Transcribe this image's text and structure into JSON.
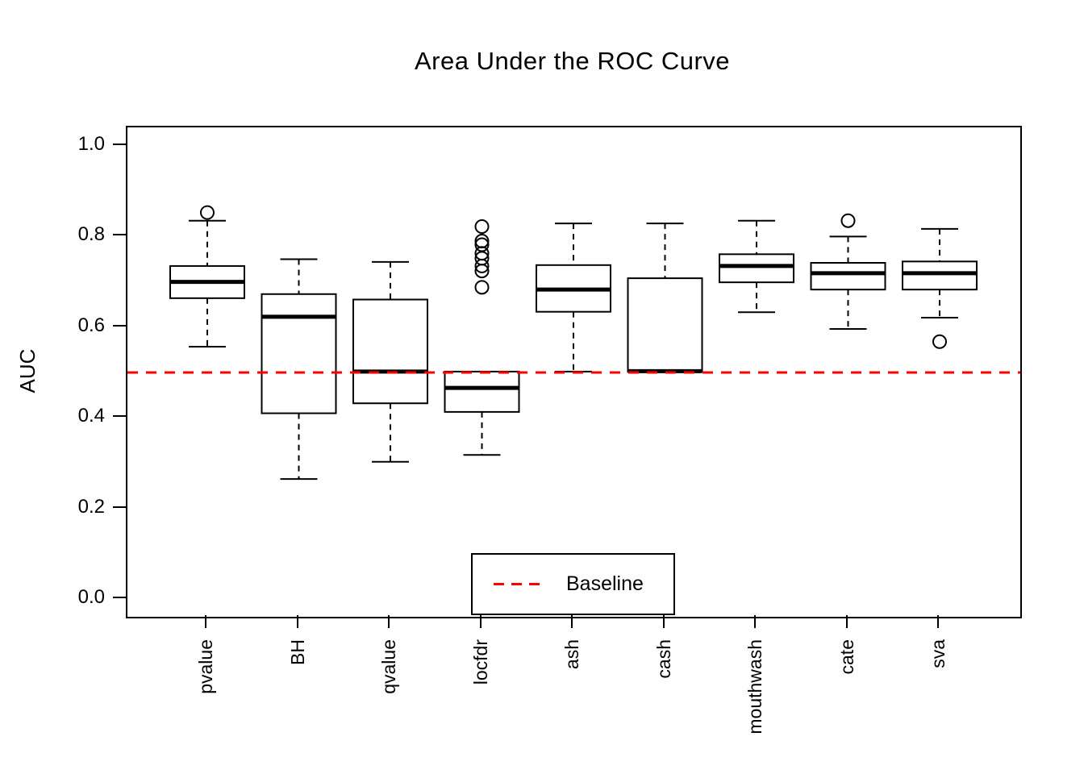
{
  "chart_data": {
    "type": "boxplot",
    "title": "Area Under the ROC Curve",
    "ylabel": "AUC",
    "xlabel": "",
    "ylim": [
      0.0,
      1.0
    ],
    "yticks": [
      0.0,
      0.2,
      0.4,
      0.6,
      0.8,
      1.0
    ],
    "grid": false,
    "categories": [
      "pvalue",
      "BH",
      "qvalue",
      "locfdr",
      "ash",
      "cash",
      "mouthwash",
      "cate",
      "sva"
    ],
    "boxes": [
      {
        "name": "pvalue",
        "whisker_low": 0.557,
        "q1": 0.664,
        "median": 0.7,
        "q3": 0.735,
        "whisker_high": 0.835,
        "outliers": [
          0.853
        ]
      },
      {
        "name": "BH",
        "whisker_low": 0.265,
        "q1": 0.41,
        "median": 0.623,
        "q3": 0.673,
        "whisker_high": 0.75,
        "outliers": []
      },
      {
        "name": "qvalue",
        "whisker_low": 0.303,
        "q1": 0.432,
        "median": 0.502,
        "q3": 0.661,
        "whisker_high": 0.744,
        "outliers": []
      },
      {
        "name": "locfdr",
        "whisker_low": 0.318,
        "q1": 0.413,
        "median": 0.466,
        "q3": 0.502,
        "whisker_high": 0.502,
        "outliers": [
          0.822,
          0.79,
          0.782,
          0.763,
          0.752,
          0.735,
          0.724,
          0.688
        ]
      },
      {
        "name": "ash",
        "whisker_low": 0.502,
        "q1": 0.634,
        "median": 0.683,
        "q3": 0.737,
        "whisker_high": 0.829,
        "outliers": []
      },
      {
        "name": "cash",
        "whisker_low": 0.502,
        "q1": 0.502,
        "median": 0.503,
        "q3": 0.708,
        "whisker_high": 0.829,
        "outliers": []
      },
      {
        "name": "mouthwash",
        "whisker_low": 0.633,
        "q1": 0.699,
        "median": 0.735,
        "q3": 0.761,
        "whisker_high": 0.835,
        "outliers": []
      },
      {
        "name": "cate",
        "whisker_low": 0.596,
        "q1": 0.683,
        "median": 0.719,
        "q3": 0.742,
        "whisker_high": 0.8,
        "outliers": [
          0.835
        ]
      },
      {
        "name": "sva",
        "whisker_low": 0.621,
        "q1": 0.683,
        "median": 0.719,
        "q3": 0.745,
        "whisker_high": 0.817,
        "outliers": [
          0.568
        ]
      }
    ],
    "baseline": {
      "value": 0.5,
      "color": "#FF0000",
      "style": "dashed"
    },
    "legend": {
      "label": "Baseline",
      "position": "bottom"
    },
    "colors": {
      "box_fill": "#FFFFFF",
      "line": "#000000",
      "baseline": "#FF0000",
      "background": "#FFFFFF"
    }
  }
}
